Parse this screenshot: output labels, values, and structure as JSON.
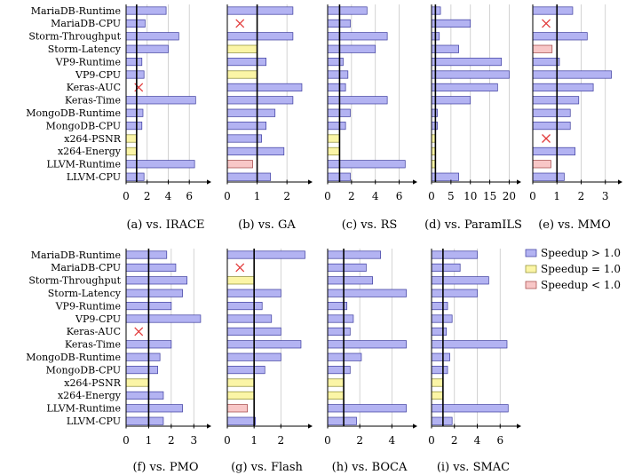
{
  "colors": {
    "above": "#b3b3f2",
    "above_stroke": "#3b3b9e",
    "equal": "#fbf5a6",
    "equal_stroke": "#8a8a2e",
    "below": "#f8c7c7",
    "below_stroke": "#a04040",
    "cross": "#e23b3b",
    "grid": "#c8c8c8"
  },
  "legend": {
    "above": "Speedup > 1.0",
    "equal": "Speedup = 1.0",
    "below": "Speedup < 1.0"
  },
  "chart_data": {
    "type": "bar",
    "orientation": "horizontal",
    "reference_line": 1.0,
    "categories": [
      "MariaDB-Runtime",
      "MariaDB-CPU",
      "Storm-Throughput",
      "Storm-Latency",
      "VP9-Runtime",
      "VP9-CPU",
      "Keras-AUC",
      "Keras-Time",
      "MongoDB-Runtime",
      "MongoDB-CPU",
      "x264-PSNR",
      "x264-Energy",
      "LLVM-Runtime",
      "LLVM-CPU"
    ],
    "panels": [
      {
        "caption_pre": "(a) vs. ",
        "caption_name": "IRACE",
        "caption_post": "",
        "xlim": [
          0,
          7.5
        ],
        "ticks": [
          0,
          2,
          4,
          6
        ],
        "values": [
          3.8,
          1.8,
          5.0,
          4.0,
          1.5,
          1.7,
          null,
          6.6,
          1.6,
          1.5,
          1.0,
          1.0,
          6.5,
          1.7
        ]
      },
      {
        "caption_pre": "(b) vs. ",
        "caption_name": "GA",
        "caption_post": "",
        "xlim": [
          0,
          2.65
        ],
        "ticks": [
          0,
          1,
          2
        ],
        "values": [
          2.2,
          null,
          2.2,
          1.0,
          1.3,
          1.0,
          2.5,
          2.2,
          1.6,
          1.3,
          1.15,
          1.9,
          0.85,
          1.45
        ]
      },
      {
        "caption_pre": "(c) vs. ",
        "caption_name": "RS",
        "caption_post": "",
        "xlim": [
          0,
          7.0
        ],
        "ticks": [
          0,
          2,
          4,
          6
        ],
        "values": [
          3.3,
          1.9,
          5.0,
          4.0,
          1.3,
          1.7,
          1.5,
          5.0,
          1.9,
          1.5,
          1.0,
          1.0,
          6.5,
          1.9
        ]
      },
      {
        "caption_pre": "(d) vs. ",
        "caption_name": "ParamILS",
        "caption_post": "",
        "xlim": [
          0,
          21.5
        ],
        "ticks": [
          0,
          5,
          10,
          15,
          20
        ],
        "values": [
          2.3,
          10.0,
          2.0,
          7.0,
          18.0,
          20.0,
          17.0,
          10.0,
          1.5,
          1.5,
          1.0,
          1.0,
          1.0,
          7.0
        ]
      },
      {
        "caption_pre": "(e) vs. ",
        "caption_name": "MMO",
        "caption_post": "",
        "xlim": [
          0,
          3.45
        ],
        "ticks": [
          0,
          1,
          2,
          3
        ],
        "values": [
          1.65,
          null,
          2.25,
          0.8,
          1.1,
          3.25,
          2.5,
          1.9,
          1.55,
          1.55,
          null,
          1.75,
          0.75,
          1.3
        ]
      },
      {
        "caption_pre": "(f) vs. ",
        "caption_name": "PMO",
        "caption_post": "",
        "xlim": [
          0,
          3.5
        ],
        "ticks": [
          0,
          1,
          2,
          3
        ],
        "values": [
          1.8,
          2.2,
          2.7,
          2.5,
          2.0,
          3.3,
          null,
          2.0,
          1.5,
          1.4,
          1.0,
          1.65,
          2.5,
          1.65
        ]
      },
      {
        "caption_pre": "(g) vs. ",
        "caption_name": "Flash",
        "caption_post": "",
        "xlim": [
          0,
          2.95
        ],
        "ticks": [
          0,
          1,
          2
        ],
        "values": [
          2.9,
          null,
          1.0,
          2.0,
          1.3,
          1.65,
          2.0,
          2.75,
          2.0,
          1.4,
          1.0,
          1.0,
          0.75,
          1.05
        ]
      },
      {
        "caption_pre": "(h) vs. ",
        "caption_name": "BOCA",
        "caption_post": "",
        "xlim": [
          0,
          5.2
        ],
        "ticks": [
          0,
          2,
          4
        ],
        "values": [
          3.3,
          2.4,
          2.8,
          4.9,
          1.2,
          1.6,
          1.4,
          4.9,
          2.1,
          1.4,
          1.0,
          1.0,
          4.9,
          1.8
        ]
      },
      {
        "caption_pre": "(i) vs. ",
        "caption_name": "SMAC",
        "caption_post": "",
        "xlim": [
          0,
          7.3
        ],
        "ticks": [
          0,
          2,
          4,
          6
        ],
        "values": [
          4.0,
          2.5,
          5.0,
          4.0,
          1.4,
          1.8,
          1.3,
          6.6,
          1.6,
          1.4,
          1.0,
          1.0,
          6.7,
          1.8
        ]
      }
    ]
  }
}
